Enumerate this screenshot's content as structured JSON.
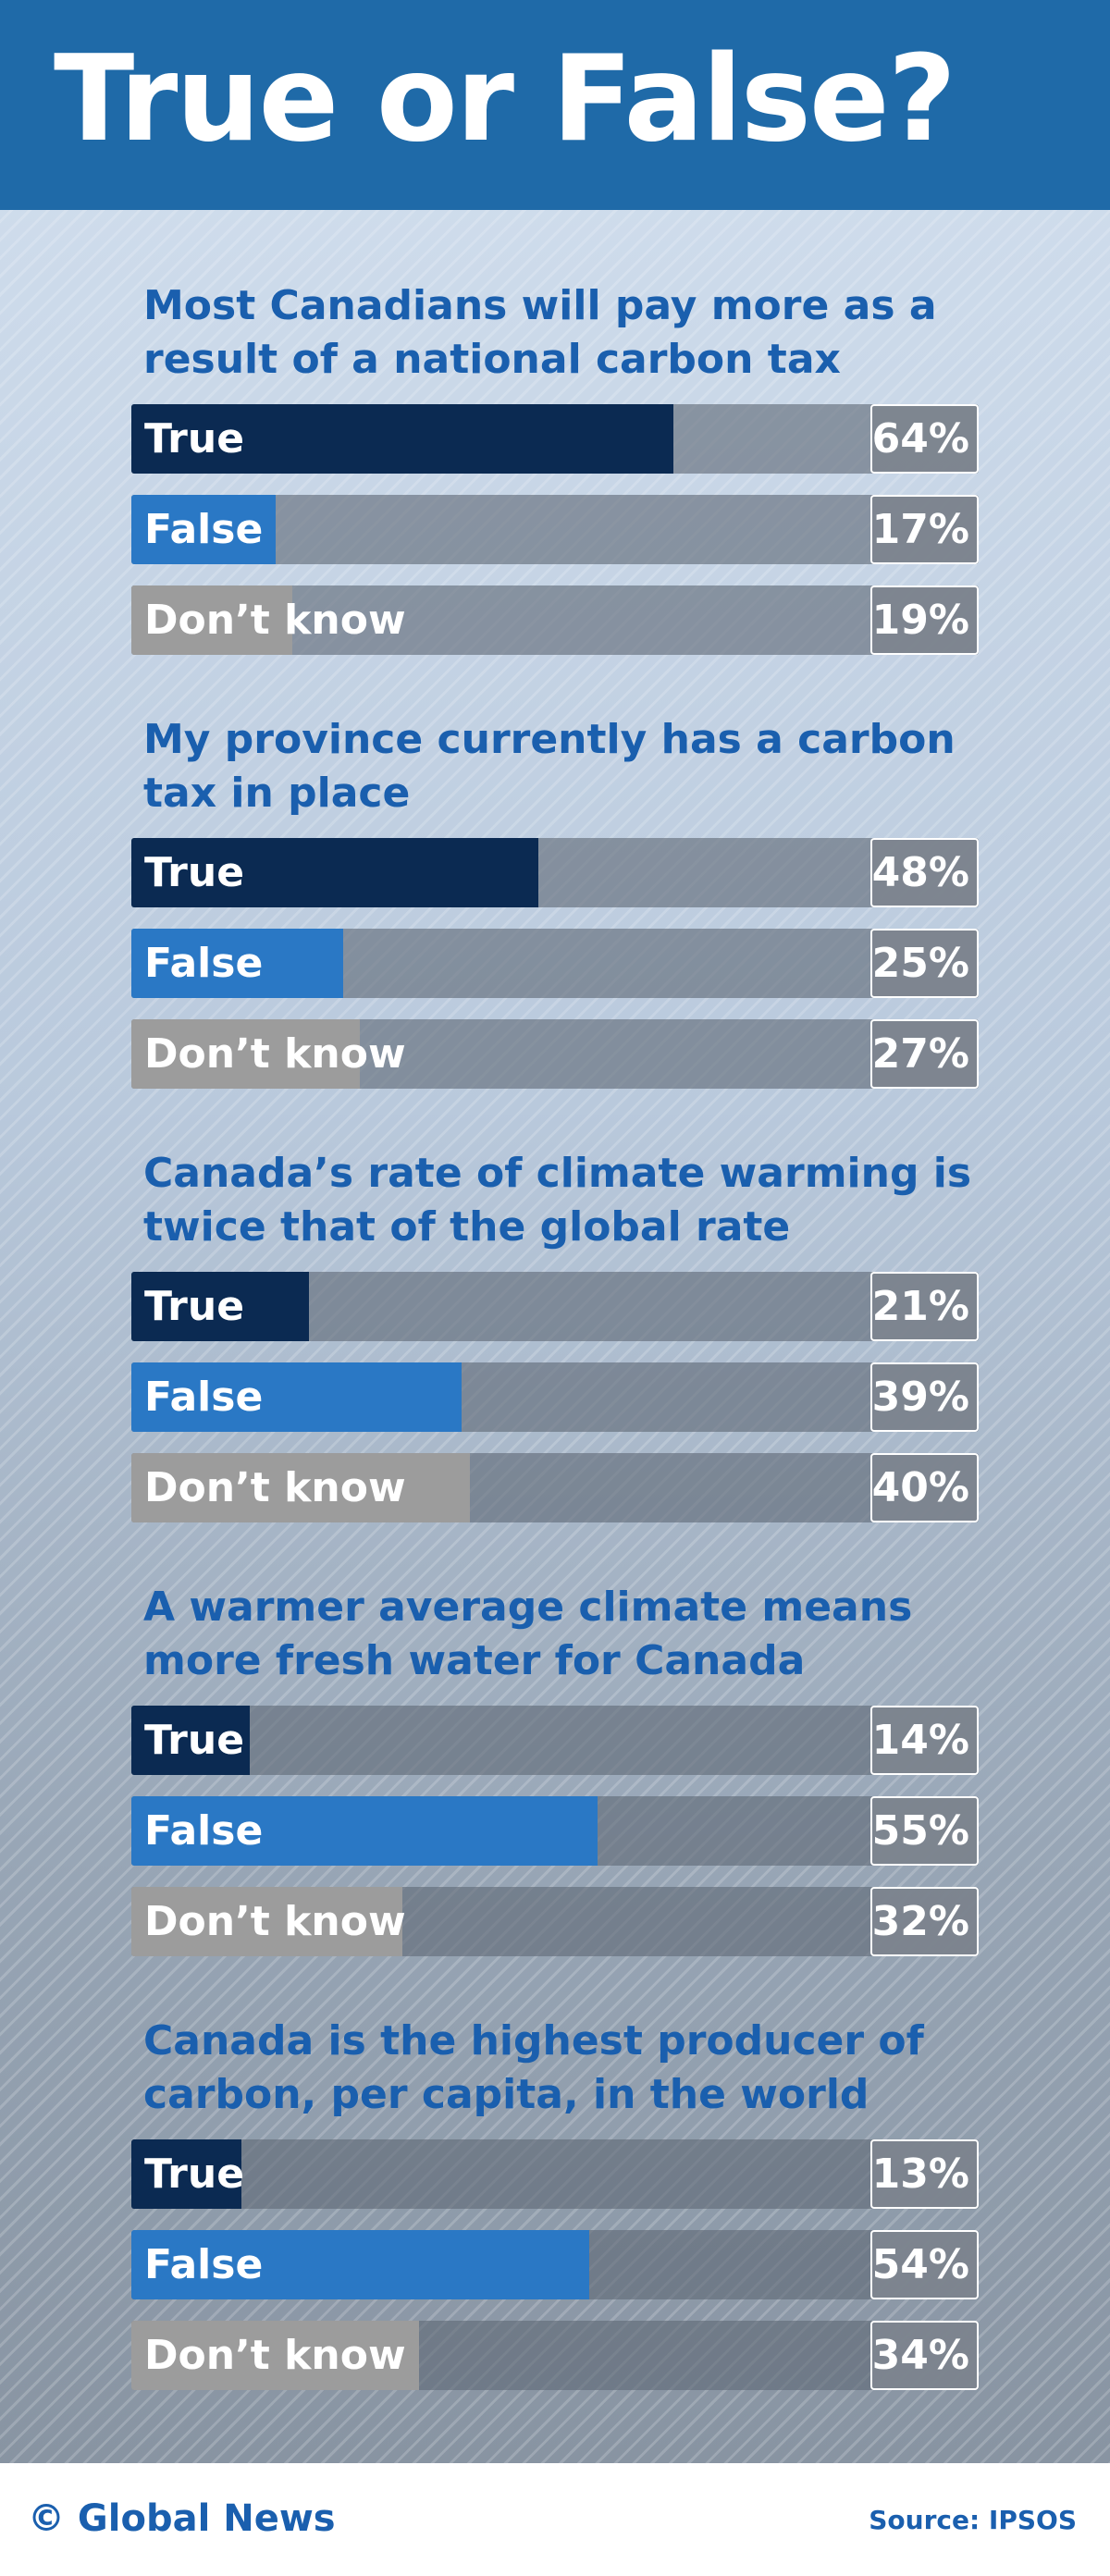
{
  "title": "True or False?",
  "footer": {
    "credit": "© Global News",
    "source": "Source: IPSOS"
  },
  "chart_data": [
    {
      "type": "bar",
      "title": "Most Canadians will pay more as a result of a national carbon tax",
      "categories": [
        "True",
        "False",
        "Don’t know"
      ],
      "values": [
        64,
        17,
        19
      ],
      "value_labels": [
        "64%",
        "17%",
        "19%"
      ],
      "colors": [
        "#0b2a52",
        "#2a78c5",
        "#9c9c9c"
      ],
      "xlim": [
        0,
        100
      ]
    },
    {
      "type": "bar",
      "title": "My province currently has a carbon tax in place",
      "categories": [
        "True",
        "False",
        "Don’t know"
      ],
      "values": [
        48,
        25,
        27
      ],
      "value_labels": [
        "48%",
        "25%",
        "27%"
      ],
      "colors": [
        "#0b2a52",
        "#2a78c5",
        "#9c9c9c"
      ],
      "xlim": [
        0,
        100
      ]
    },
    {
      "type": "bar",
      "title": "Canada’s rate of climate warming is twice that of the global rate",
      "categories": [
        "True",
        "False",
        "Don’t know"
      ],
      "values": [
        21,
        39,
        40
      ],
      "value_labels": [
        "21%",
        "39%",
        "40%"
      ],
      "colors": [
        "#0b2a52",
        "#2a78c5",
        "#9c9c9c"
      ],
      "xlim": [
        0,
        100
      ]
    },
    {
      "type": "bar",
      "title": "A warmer average climate means more fresh water for Canada",
      "categories": [
        "True",
        "False",
        "Don’t know"
      ],
      "values": [
        14,
        55,
        32
      ],
      "value_labels": [
        "14%",
        "55%",
        "32%"
      ],
      "colors": [
        "#0b2a52",
        "#2a78c5",
        "#9c9c9c"
      ],
      "xlim": [
        0,
        100
      ]
    },
    {
      "type": "bar",
      "title": "Canada is the highest producer of carbon, per capita, in the world",
      "categories": [
        "True",
        "False",
        "Don’t know"
      ],
      "values": [
        13,
        54,
        34
      ],
      "value_labels": [
        "13%",
        "54%",
        "34%"
      ],
      "colors": [
        "#0b2a52",
        "#2a78c5",
        "#9c9c9c"
      ],
      "xlim": [
        0,
        100
      ]
    }
  ]
}
